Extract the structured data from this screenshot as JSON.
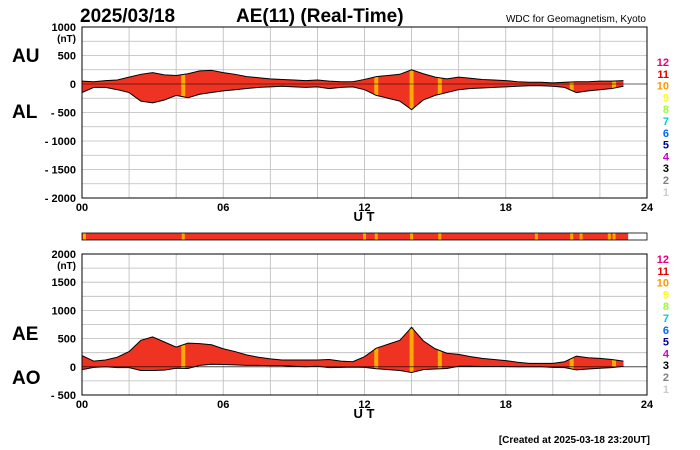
{
  "header": {
    "date": "2025/03/18",
    "title": "AE(11) (Real-Time)",
    "source": "WDC for Geomagnetism, Kyoto"
  },
  "footer": "[Created at 2025-03-18 23:20UT]",
  "level_legend": {
    "labels": [
      "12",
      "11",
      "10",
      "9",
      "8",
      "7",
      "6",
      "5",
      "4",
      "3",
      "2",
      "1"
    ],
    "colors": [
      "#e6007e",
      "#e60000",
      "#ff9900",
      "#ffff00",
      "#99ff33",
      "#00cccc",
      "#0066ff",
      "#000099",
      "#cc00cc",
      "#000000",
      "#808080",
      "#cccccc"
    ]
  },
  "station_bar": {
    "base_color": "#ee3322",
    "highlight_color": "#ffaa00",
    "highlight_hours": [
      0.1,
      4.3,
      12.0,
      12.5,
      14.0,
      15.2,
      19.3,
      20.8,
      21.2,
      22.4,
      22.6
    ]
  },
  "chart_data": [
    {
      "type": "area",
      "name": "AU/AL",
      "labels": [
        "AU",
        "AL"
      ],
      "ylabel": "(nT)",
      "xlabel": "U T",
      "xlim": [
        0,
        24
      ],
      "ylim": [
        -2000,
        1000
      ],
      "x_ticks": [
        "00",
        "06",
        "12",
        "18",
        "24"
      ],
      "y_ticks": [
        "1000",
        "500",
        "0",
        "- 500",
        "- 1000",
        "- 1500",
        "- 2000"
      ],
      "y_tick_values": [
        1000,
        500,
        0,
        -500,
        -1000,
        -1500,
        -2000
      ],
      "grid": true,
      "fill_color": "#ee3322",
      "x": [
        0,
        0.5,
        1,
        1.5,
        2,
        2.5,
        3,
        3.5,
        4,
        4.5,
        5,
        5.5,
        6,
        6.5,
        7,
        7.5,
        8,
        8.5,
        9,
        9.5,
        10,
        10.5,
        11,
        11.5,
        12,
        12.5,
        13,
        13.5,
        14,
        14.5,
        15,
        15.5,
        16,
        16.5,
        17,
        17.5,
        18,
        18.5,
        19,
        19.5,
        20,
        20.5,
        21,
        21.5,
        22,
        22.5,
        23
      ],
      "series": [
        {
          "name": "AU",
          "values": [
            50,
            40,
            60,
            70,
            120,
            170,
            200,
            160,
            150,
            180,
            230,
            240,
            200,
            170,
            130,
            110,
            90,
            80,
            70,
            60,
            70,
            50,
            40,
            40,
            80,
            130,
            150,
            170,
            250,
            180,
            120,
            90,
            120,
            100,
            80,
            70,
            60,
            40,
            30,
            30,
            20,
            30,
            40,
            40,
            50,
            50,
            60
          ]
        },
        {
          "name": "AL",
          "values": [
            -150,
            -60,
            -60,
            -100,
            -150,
            -300,
            -330,
            -280,
            -200,
            -240,
            -180,
            -150,
            -120,
            -100,
            -80,
            -60,
            -50,
            -40,
            -50,
            -60,
            -50,
            -80,
            -60,
            -50,
            -100,
            -200,
            -250,
            -300,
            -450,
            -280,
            -200,
            -150,
            -100,
            -80,
            -70,
            -60,
            -50,
            -40,
            -30,
            -30,
            -40,
            -60,
            -150,
            -120,
            -100,
            -80,
            -40
          ]
        }
      ],
      "highlights": [
        4.3,
        12.5,
        14.0,
        15.2,
        20.8,
        22.6
      ]
    },
    {
      "type": "area",
      "name": "AE/AO",
      "labels": [
        "AE",
        "AO"
      ],
      "ylabel": "(nT)",
      "xlabel": "U T",
      "xlim": [
        0,
        24
      ],
      "ylim": [
        -500,
        2000
      ],
      "x_ticks": [
        "00",
        "06",
        "12",
        "18",
        "24"
      ],
      "y_ticks": [
        "2000",
        "1500",
        "1000",
        "500",
        "0",
        "- 500"
      ],
      "y_tick_values": [
        2000,
        1500,
        1000,
        500,
        0,
        -500
      ],
      "grid": true,
      "fill_color": "#ee3322",
      "x": [
        0,
        0.5,
        1,
        1.5,
        2,
        2.5,
        3,
        3.5,
        4,
        4.5,
        5,
        5.5,
        6,
        6.5,
        7,
        7.5,
        8,
        8.5,
        9,
        9.5,
        10,
        10.5,
        11,
        11.5,
        12,
        12.5,
        13,
        13.5,
        14,
        14.5,
        15,
        15.5,
        16,
        16.5,
        17,
        17.5,
        18,
        18.5,
        19,
        19.5,
        20,
        20.5,
        21,
        21.5,
        22,
        22.5,
        23
      ],
      "series": [
        {
          "name": "AE",
          "values": [
            200,
            100,
            120,
            170,
            270,
            470,
            530,
            440,
            350,
            420,
            410,
            390,
            320,
            270,
            210,
            170,
            140,
            120,
            120,
            120,
            120,
            130,
            100,
            90,
            180,
            330,
            400,
            470,
            700,
            460,
            320,
            240,
            220,
            180,
            150,
            130,
            110,
            80,
            60,
            60,
            60,
            90,
            190,
            160,
            150,
            130,
            100
          ]
        },
        {
          "name": "AO",
          "values": [
            -50,
            -10,
            0,
            -15,
            -15,
            -65,
            -65,
            -60,
            -25,
            -30,
            25,
            45,
            40,
            35,
            25,
            25,
            20,
            20,
            10,
            0,
            10,
            -15,
            -10,
            -5,
            -10,
            -35,
            -50,
            -65,
            -100,
            -50,
            -40,
            -30,
            10,
            10,
            5,
            5,
            5,
            0,
            0,
            0,
            -10,
            -15,
            -55,
            -40,
            -25,
            -15,
            10
          ]
        }
      ],
      "highlights": [
        4.3,
        12.5,
        14.0,
        15.2,
        20.8,
        22.6
      ]
    }
  ]
}
